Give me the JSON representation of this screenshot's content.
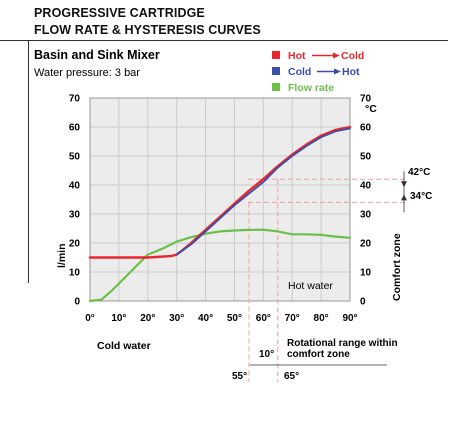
{
  "header": {
    "line1": "PROGRESSIVE CARTRIDGE",
    "line2": "FLOW RATE & HYSTERESIS CURVES"
  },
  "colors": {
    "hot_to_cold": "#e8262b",
    "cold_to_hot": "#3a4fa8",
    "flow_rate": "#6cc04a",
    "grid": "#cccccc",
    "plot_bg": "#ececec",
    "guide_red": "#f0a0a0"
  },
  "chart_data": {
    "type": "line",
    "title": "Basin and Sink Mixer",
    "subtitle": "Water pressure: 3 bar",
    "xlim": [
      0,
      90
    ],
    "x_ticks": [
      "0°",
      "10°",
      "20°",
      "30°",
      "40°",
      "50°",
      "60°",
      "70°",
      "80°",
      "90°"
    ],
    "ylim": [
      0,
      70
    ],
    "y_ticks_left": [
      "0",
      "10",
      "20",
      "30",
      "40",
      "50",
      "60",
      "70"
    ],
    "y_ticks_right": [
      "0",
      "10",
      "20",
      "30",
      "40",
      "50",
      "60",
      "70"
    ],
    "ylabel": "l/min",
    "y2unit": "°C",
    "y2label": "Comfort zone",
    "grid": true,
    "legend_position": "top-right",
    "legend": [
      {
        "from": "Hot",
        "to": "Cold",
        "series": "hot_to_cold"
      },
      {
        "from": "Cold",
        "to": "Hot",
        "series": "cold_to_hot"
      },
      {
        "label": "Flow rate",
        "series": "flow_rate"
      }
    ],
    "series": [
      {
        "id": "hot_to_cold",
        "x": [
          0,
          10,
          20,
          28,
          30,
          32,
          35,
          40,
          45,
          50,
          55,
          60,
          65,
          70,
          75,
          80,
          85,
          90
        ],
        "y": [
          15,
          15,
          15,
          15.5,
          16,
          17.5,
          20,
          24.5,
          29,
          33.5,
          38,
          42,
          46.5,
          50.5,
          54,
          57,
          59,
          60
        ]
      },
      {
        "id": "cold_to_hot",
        "x": [
          30,
          35,
          40,
          45,
          50,
          55,
          60,
          65,
          70,
          75,
          80,
          85,
          90
        ],
        "y": [
          16,
          19.5,
          24,
          28.5,
          33,
          37,
          41,
          46,
          50,
          53.5,
          56.5,
          58.5,
          59.5
        ]
      },
      {
        "id": "flow_rate",
        "x": [
          0,
          4,
          8,
          12,
          16,
          20,
          25,
          30,
          35,
          40,
          45,
          50,
          55,
          60,
          65,
          70,
          75,
          80,
          85,
          90
        ],
        "y": [
          0,
          0.5,
          4,
          8,
          12,
          16,
          18,
          20.5,
          22,
          23.2,
          24,
          24.3,
          24.5,
          24.6,
          24,
          23,
          23,
          22.8,
          22.2,
          21.8
        ]
      }
    ],
    "annotations": {
      "temp_high": "42°C",
      "temp_low": "34°C",
      "hot_water": "Hot water",
      "cold_water": "Cold water",
      "range_width": "10°",
      "range_text_1": "Rotational range within",
      "range_text_2": "comfort zone",
      "angle_start": "55°",
      "angle_end": "65°"
    }
  }
}
